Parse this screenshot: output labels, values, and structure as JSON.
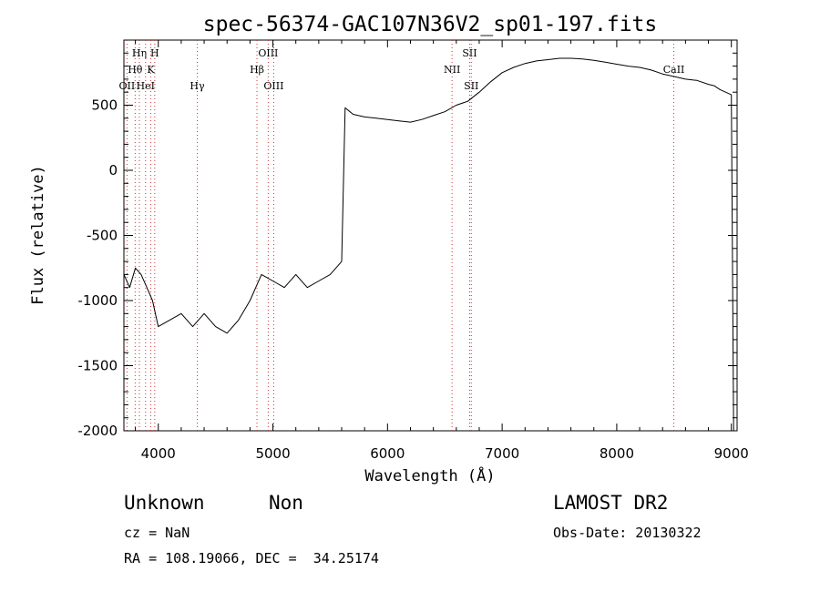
{
  "chart_data": {
    "type": "line",
    "title": "spec-56374-GAC107N36V2_sp01-197.fits",
    "xlabel": "Wavelength (Å)",
    "ylabel": "Flux (relative)",
    "xlim": [
      3700,
      9050
    ],
    "ylim": [
      -2000,
      1000
    ],
    "xticks": [
      4000,
      5000,
      6000,
      7000,
      8000,
      9000
    ],
    "yticks": [
      -2000,
      -1500,
      -1000,
      -500,
      0,
      500
    ],
    "grid": false,
    "line_color": "#000000",
    "marker_color": "#cc3333",
    "series": [
      {
        "x": [
          3700,
          3750,
          3800,
          3850,
          3900,
          3950,
          4000,
          4100,
          4200,
          4300,
          4400,
          4500,
          4600,
          4700,
          4800,
          4900,
          5000,
          5100,
          5200,
          5300,
          5400,
          5500,
          5600,
          5630,
          5700,
          5800,
          5900,
          6000,
          6100,
          6200,
          6300,
          6400,
          6500,
          6600,
          6700,
          6800,
          6900,
          7000,
          7100,
          7200,
          7300,
          7400,
          7500,
          7600,
          7700,
          7800,
          7900,
          8000,
          8100,
          8200,
          8300,
          8400,
          8500,
          8600,
          8700,
          8800,
          8850,
          8900,
          8950,
          9000,
          9020
        ],
        "y": [
          -800,
          -900,
          -750,
          -800,
          -900,
          -1000,
          -1200,
          -1150,
          -1100,
          -1200,
          -1100,
          -1200,
          -1250,
          -1150,
          -1000,
          -800,
          -850,
          -900,
          -800,
          -900,
          -850,
          -800,
          -700,
          480,
          430,
          410,
          400,
          390,
          380,
          370,
          390,
          420,
          450,
          500,
          530,
          600,
          680,
          750,
          790,
          820,
          840,
          850,
          860,
          860,
          855,
          845,
          830,
          815,
          800,
          790,
          770,
          740,
          720,
          700,
          690,
          660,
          650,
          620,
          600,
          580,
          -2000
        ]
      }
    ],
    "line_markers": [
      {
        "label": "OII",
        "x": 3727,
        "row": 3
      },
      {
        "label": "Hθ",
        "x": 3798,
        "row": 2
      },
      {
        "label": "Hη",
        "x": 3835,
        "row": 1
      },
      {
        "label": "HeI",
        "x": 3889,
        "row": 3
      },
      {
        "label": "K",
        "x": 3934,
        "row": 2
      },
      {
        "label": "H",
        "x": 3969,
        "row": 1
      },
      {
        "label": "Hγ",
        "x": 4340,
        "row": 3
      },
      {
        "label": "Hβ",
        "x": 4861,
        "row": 2
      },
      {
        "label": "OIII",
        "x": 4959,
        "row": 1
      },
      {
        "label": "OIII",
        "x": 5007,
        "row": 3
      },
      {
        "label": "NII",
        "x": 6563,
        "row": 2
      },
      {
        "label": "SII",
        "x": 6717,
        "row": 1
      },
      {
        "label": "SII",
        "x": 6731,
        "row": 3
      },
      {
        "label": "CaII",
        "x": 8498,
        "row": 2
      }
    ]
  },
  "info": {
    "object_class": "Unknown",
    "object_subclass": "Non",
    "redshift": "cz = NaN",
    "coords": "RA = 108.19066, DEC =  34.25174",
    "survey": "LAMOST DR2",
    "obs_date": "Obs-Date: 20130322"
  }
}
